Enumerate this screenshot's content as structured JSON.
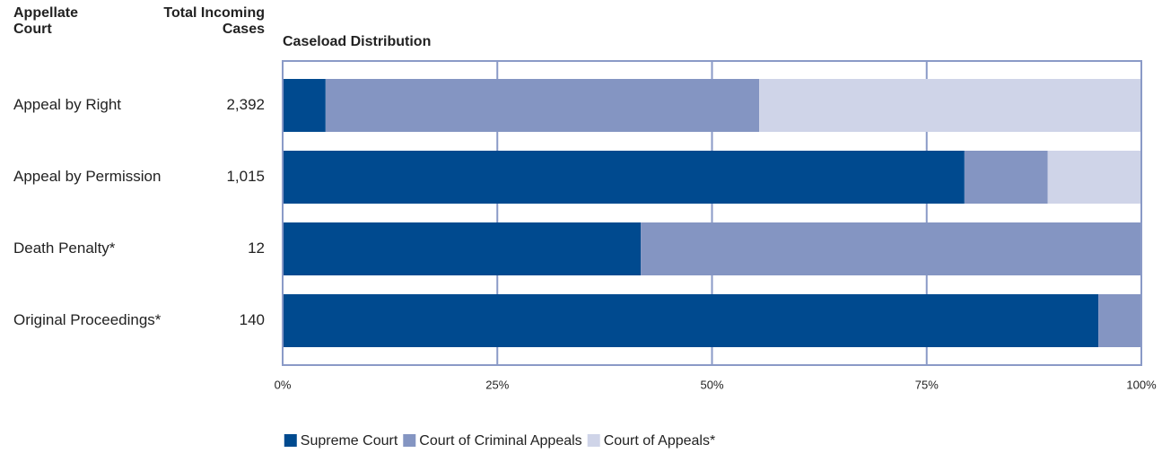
{
  "chart_data": {
    "type": "stacked_barh",
    "title": "Caseload Distribution",
    "category_header": "Appellate Court",
    "total_header": "Total Incoming Cases",
    "categories": [
      "Appeal by Right",
      "Appeal by Permission",
      "Death Penalty*",
      "Original Proceedings*"
    ],
    "total_incoming_cases": [
      "2,392",
      "1,015",
      "12",
      "140"
    ],
    "series": [
      {
        "name": "Supreme Court",
        "color": "#004a8f",
        "values": [
          5,
          79.4,
          41.7,
          95
        ]
      },
      {
        "name": "Court of Criminal Appeals",
        "color": "#8495c2",
        "values": [
          50.5,
          9.7,
          58.3,
          5
        ]
      },
      {
        "name": "Court of Appeals*",
        "color": "#cfd4e8",
        "values": [
          44.5,
          10.9,
          0,
          0
        ]
      }
    ],
    "xlim": [
      0,
      100
    ],
    "xticks": [
      {
        "value": 0,
        "label": "0%"
      },
      {
        "value": 25,
        "label": "25%"
      },
      {
        "value": 50,
        "label": "50%"
      },
      {
        "value": 75,
        "label": "75%"
      },
      {
        "value": 100,
        "label": "100%"
      }
    ],
    "grid": true,
    "legend": "bottom"
  }
}
